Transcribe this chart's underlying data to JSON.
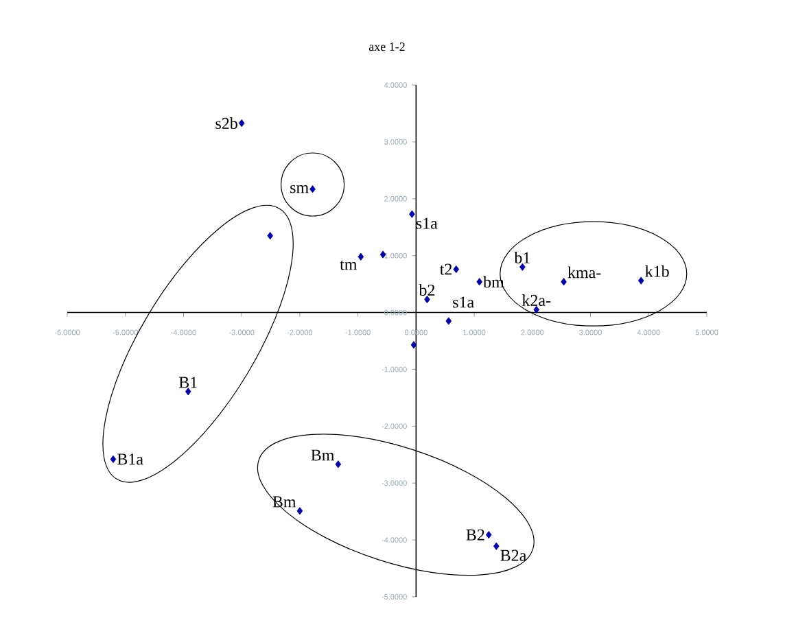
{
  "chart_data": {
    "type": "scatter",
    "title": "axe 1-2",
    "x": [
      -3.0,
      -1.78,
      -0.07,
      -2.51,
      -0.95,
      -0.57,
      0.69,
      1.09,
      1.83,
      2.54,
      3.87,
      0.19,
      2.07,
      0.56,
      -0.04,
      -3.92,
      -5.21,
      -1.34,
      -2.0,
      1.25,
      1.38
    ],
    "values": [
      3.33,
      2.17,
      1.73,
      1.35,
      0.98,
      1.02,
      0.76,
      0.54,
      0.8,
      0.54,
      0.56,
      0.23,
      0.05,
      -0.15,
      -0.57,
      -1.39,
      -2.58,
      -2.67,
      -3.49,
      -3.91,
      -4.11
    ],
    "color": "#0000a0",
    "marker": "diamond",
    "grid": false,
    "xlim": [
      -6,
      5
    ],
    "ylim": [
      -5,
      4
    ],
    "xticks": [
      {
        "value": -6,
        "label": "-6.0000"
      },
      {
        "value": -5,
        "label": "-5.0000"
      },
      {
        "value": -4,
        "label": "-4.0000"
      },
      {
        "value": -3,
        "label": "-3.0000"
      },
      {
        "value": -2,
        "label": "-2.0000"
      },
      {
        "value": -1,
        "label": "-1.0000"
      },
      {
        "value": 0,
        "label": "0.0000"
      },
      {
        "value": 1,
        "label": "1.0000"
      },
      {
        "value": 2,
        "label": "2.0000"
      },
      {
        "value": 3,
        "label": "3.0000"
      },
      {
        "value": 4,
        "label": "4.0000"
      },
      {
        "value": 5,
        "label": "5.0000"
      }
    ],
    "yticks": [
      {
        "value": -5,
        "label": "-5.0000"
      },
      {
        "value": -4,
        "label": "-4.0000"
      },
      {
        "value": -3,
        "label": "-3.0000"
      },
      {
        "value": -2,
        "label": "-2.0000"
      },
      {
        "value": -1,
        "label": "-1.0000"
      },
      {
        "value": 0,
        "label": "0.0000"
      },
      {
        "value": 1,
        "label": "1.0000"
      },
      {
        "value": 2,
        "label": "2.0000"
      },
      {
        "value": 3,
        "label": "3.0000"
      },
      {
        "value": 4,
        "label": "4.0000"
      }
    ],
    "annotations": [
      {
        "text": "s2b",
        "x": -3.0,
        "y": 3.33
      },
      {
        "text": "sm",
        "x": -1.78,
        "y": 2.17
      },
      {
        "text": "s1a",
        "x": -0.07,
        "y": 1.73
      },
      {
        "text": "tm",
        "x": -0.95,
        "y": 0.98
      },
      {
        "text": "t2",
        "x": 0.69,
        "y": 0.76
      },
      {
        "text": "bm",
        "x": 1.09,
        "y": 0.54
      },
      {
        "text": "b1",
        "x": 1.83,
        "y": 0.8
      },
      {
        "text": "kma-",
        "x": 2.54,
        "y": 0.54
      },
      {
        "text": "k1b",
        "x": 3.87,
        "y": 0.56
      },
      {
        "text": "b2",
        "x": 0.19,
        "y": 0.23
      },
      {
        "text": "k2a-",
        "x": 2.07,
        "y": 0.05
      },
      {
        "text": "s1a",
        "x": 0.56,
        "y": -0.15
      },
      {
        "text": "B1",
        "x": -3.92,
        "y": -1.39
      },
      {
        "text": "B1a",
        "x": -5.21,
        "y": -2.58
      },
      {
        "text": "Bm",
        "x": -1.34,
        "y": -2.67
      },
      {
        "text": "Bm",
        "x": -2.0,
        "y": -3.49
      },
      {
        "text": "B2",
        "x": 1.25,
        "y": -3.91
      },
      {
        "text": "B2a",
        "x": 1.38,
        "y": -4.11
      }
    ]
  }
}
